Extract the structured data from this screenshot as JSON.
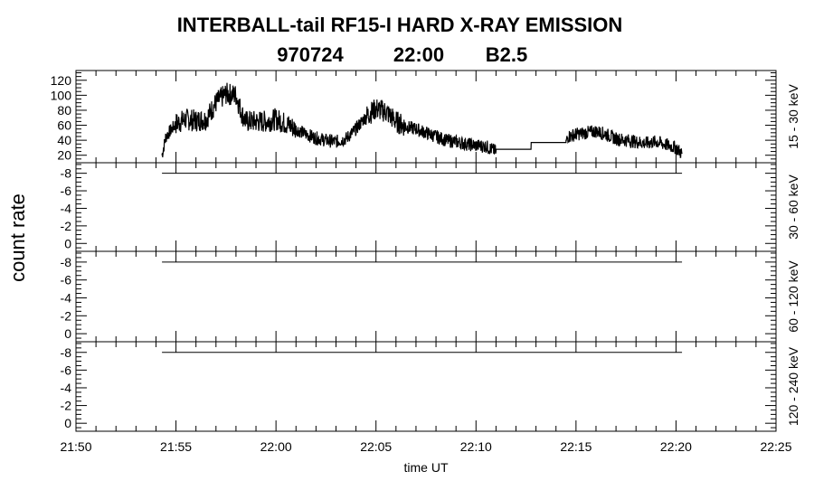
{
  "chart_data": {
    "type": "line",
    "title": "INTERBALL-tail  RF15-I  HARD  X-RAY  EMISSION",
    "subtitle": [
      "970724",
      "22:00",
      "B2.5"
    ],
    "ylabel": "count rate",
    "xlabel": "time UT",
    "x_units": "minutes after 21:50",
    "xlim": [
      0,
      35
    ],
    "x_ticks": [
      {
        "value": 0,
        "label": "21:50"
      },
      {
        "value": 5,
        "label": "21:55"
      },
      {
        "value": 10,
        "label": "22:00"
      },
      {
        "value": 15,
        "label": "22:05"
      },
      {
        "value": 20,
        "label": "22:10"
      },
      {
        "value": 25,
        "label": "22:15"
      },
      {
        "value": 30,
        "label": "22:20"
      },
      {
        "value": 35,
        "label": "22:25"
      }
    ],
    "panels": [
      {
        "channel": "15 - 30 keV",
        "ylim": [
          10,
          133
        ],
        "y_ticks": [
          "20",
          "40",
          "60",
          "80",
          "100",
          "120"
        ],
        "y_tick_values": [
          20,
          40,
          60,
          80,
          100,
          120
        ],
        "series": {
          "x": [
            4.3,
            4.5,
            5.0,
            5.5,
            6.0,
            6.5,
            7.0,
            7.5,
            8.0,
            8.3,
            8.5,
            9.0,
            9.5,
            10.0,
            10.5,
            11.0,
            11.5,
            12.0,
            12.5,
            13.0,
            13.5,
            14.0,
            14.5,
            15.0,
            15.5,
            16.0,
            16.5,
            17.0,
            17.5,
            18.0,
            18.5,
            19.0,
            19.5,
            20.0,
            20.5,
            21.0,
            21.01,
            22.75,
            22.76,
            24.5,
            24.6,
            25.0,
            25.5,
            26.0,
            26.5,
            27.0,
            27.5,
            28.0,
            28.5,
            29.0,
            29.5,
            30.0,
            30.3
          ],
          "y": [
            20,
            45,
            62,
            68,
            66,
            68,
            90,
            102,
            100,
            75,
            65,
            65,
            65,
            68,
            62,
            55,
            48,
            43,
            40,
            38,
            42,
            55,
            72,
            82,
            78,
            65,
            58,
            55,
            50,
            45,
            40,
            38,
            35,
            33,
            32,
            25,
            28,
            28,
            37,
            37,
            45,
            48,
            50,
            52,
            48,
            42,
            40,
            38,
            36,
            38,
            34,
            30,
            22
          ]
        }
      },
      {
        "channel": "30 - 60 keV",
        "ylim": [
          0.9,
          -9.2
        ],
        "y_ticks": [
          "-8",
          "-6",
          "-4",
          "-2",
          "0"
        ],
        "y_tick_values": [
          -8,
          -6,
          -4,
          -2,
          0
        ],
        "series": {
          "x": [
            4.3,
            30.3
          ],
          "y": [
            -8,
            -8
          ]
        }
      },
      {
        "channel": "60 - 120 keV",
        "ylim": [
          0.9,
          -9.2
        ],
        "y_ticks": [
          "-8",
          "-6",
          "-4",
          "-2",
          "0"
        ],
        "y_tick_values": [
          -8,
          -6,
          -4,
          -2,
          0
        ],
        "series": {
          "x": [
            4.3,
            30.3
          ],
          "y": [
            -8,
            -8
          ]
        }
      },
      {
        "channel": "120 - 240 keV",
        "ylim": [
          0.9,
          -9.2
        ],
        "y_ticks": [
          "-8",
          "-6",
          "-4",
          "-2",
          "0"
        ],
        "y_tick_values": [
          -8,
          -6,
          -4,
          -2,
          0
        ],
        "series": {
          "x": [
            4.3,
            30.3
          ],
          "y": [
            -8,
            -8
          ]
        }
      }
    ],
    "grid": false,
    "color": "#000000"
  }
}
